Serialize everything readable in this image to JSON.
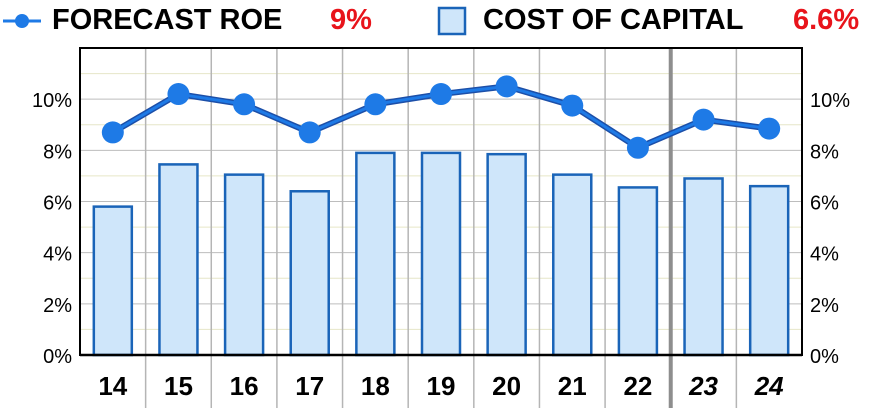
{
  "legend": {
    "roe_label": "FORECAST ROE",
    "roe_value": "9%",
    "coc_label": "COST OF CAPITAL",
    "coc_value": "6.6%",
    "value_color": "#e8141b",
    "roe_icon": "line-marker-icon",
    "coc_icon": "bar-swatch-icon"
  },
  "chart_data": {
    "type": "bar",
    "categories": [
      "14",
      "15",
      "16",
      "17",
      "18",
      "19",
      "20",
      "21",
      "22",
      "23",
      "24"
    ],
    "italic_categories": [
      "23",
      "24"
    ],
    "series": [
      {
        "name": "COST OF CAPITAL",
        "type": "bar",
        "values": [
          5.8,
          7.45,
          7.05,
          6.4,
          7.9,
          7.9,
          7.85,
          7.05,
          6.55,
          6.9,
          6.6
        ],
        "color": "#cfe6fa",
        "edge_color": "#1a64b8"
      },
      {
        "name": "FORECAST ROE",
        "type": "line",
        "values": [
          8.7,
          10.2,
          9.8,
          8.7,
          9.8,
          10.2,
          10.5,
          9.75,
          8.1,
          9.2,
          8.85
        ],
        "color": "#1e7ae6"
      }
    ],
    "yticks": [
      "0%",
      "2%",
      "4%",
      "6%",
      "8%",
      "10%"
    ],
    "ylim": [
      0,
      12
    ],
    "grid": true,
    "legend_position": "top",
    "axis_left_label": "",
    "axis_right_label": ""
  }
}
